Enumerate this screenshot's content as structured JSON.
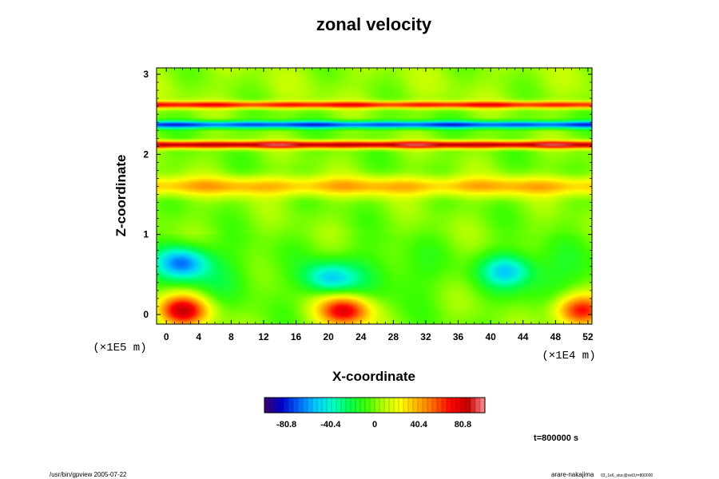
{
  "chart_data": {
    "type": "heatmap",
    "title": "zonal velocity",
    "xlabel": "X-coordinate",
    "ylabel": "Z-coordinate",
    "x_unit": "(×1E4 m)",
    "y_unit": "(×1E5 m)",
    "xlim": [
      -1.2,
      52.5
    ],
    "ylim": [
      -0.12,
      3.08
    ],
    "x_ticks": [
      0,
      4,
      8,
      12,
      16,
      20,
      24,
      28,
      32,
      36,
      40,
      44,
      48,
      52
    ],
    "x_tick_labels": [
      "0",
      "4",
      "8",
      "12",
      "16",
      "20",
      "24",
      "28",
      "32",
      "36",
      "40",
      "44",
      "48",
      "52"
    ],
    "y_ticks": [
      0,
      1,
      2,
      3
    ],
    "y_tick_labels": [
      "0",
      "1",
      "2",
      "3"
    ],
    "colorbar": {
      "min": -101,
      "max": 101,
      "ticks": [
        -80.8,
        -40.4,
        0,
        40.4,
        80.8
      ],
      "tick_labels": [
        "-80.8",
        "-40.4",
        "0",
        "40.4",
        "80.8"
      ],
      "colors": [
        "#3c006e",
        "#0000c8",
        "#0064ff",
        "#00c8ff",
        "#00ffc8",
        "#00ff50",
        "#3cff00",
        "#b4ff00",
        "#ffff00",
        "#ffb400",
        "#ff6400",
        "#ff0000",
        "#c80000",
        "#ff9090"
      ]
    },
    "features": [
      {
        "kind": "band",
        "z": 2.62,
        "value": 68
      },
      {
        "kind": "band",
        "z": 2.37,
        "value": -75
      },
      {
        "kind": "band",
        "z": 2.12,
        "value": 90
      },
      {
        "kind": "band",
        "z": 1.6,
        "value": 38
      },
      {
        "kind": "blob",
        "x": 2,
        "z": 0.65,
        "value": -58
      },
      {
        "kind": "blob",
        "x": 2,
        "z": 0.05,
        "value": 80
      },
      {
        "kind": "blob",
        "x": 22,
        "z": 0.05,
        "value": 78
      },
      {
        "kind": "blob",
        "x": 51,
        "z": 0.05,
        "value": 70
      },
      {
        "kind": "blob",
        "x": 20,
        "z": 0.45,
        "value": -45
      },
      {
        "kind": "blob",
        "x": 42,
        "z": 0.55,
        "value": -42
      }
    ],
    "grid": false,
    "legend": "bottom"
  },
  "annotations": {
    "time": "t=800000 s",
    "footer_left": "/usr/bin/gpview 2005-07-22",
    "footer_right_main": "arare-nakajima",
    "footer_right_sub": "03_1e6_stuc@vel3,t=800000"
  }
}
